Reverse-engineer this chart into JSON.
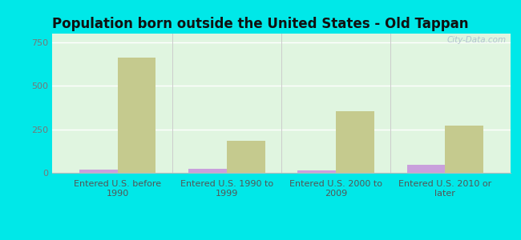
{
  "title": "Population born outside the United States - Old Tappan",
  "categories": [
    "Entered U.S. before\n1990",
    "Entered U.S. 1990 to\n1999",
    "Entered U.S. 2000 to\n2009",
    "Entered U.S. 2010 or\nlater"
  ],
  "native_values": [
    20,
    25,
    15,
    45
  ],
  "foreign_values": [
    660,
    185,
    355,
    270
  ],
  "native_color": "#c9a0dc",
  "foreign_color": "#c5ca8e",
  "background_top": "#f0faf0",
  "background_bottom": "#e0f5e0",
  "outer_background": "#00e8e8",
  "ylim": [
    0,
    800
  ],
  "yticks": [
    0,
    250,
    500,
    750
  ],
  "bar_width": 0.35,
  "title_fontsize": 12,
  "tick_fontsize": 8,
  "legend_fontsize": 9,
  "watermark": "City-Data.com"
}
